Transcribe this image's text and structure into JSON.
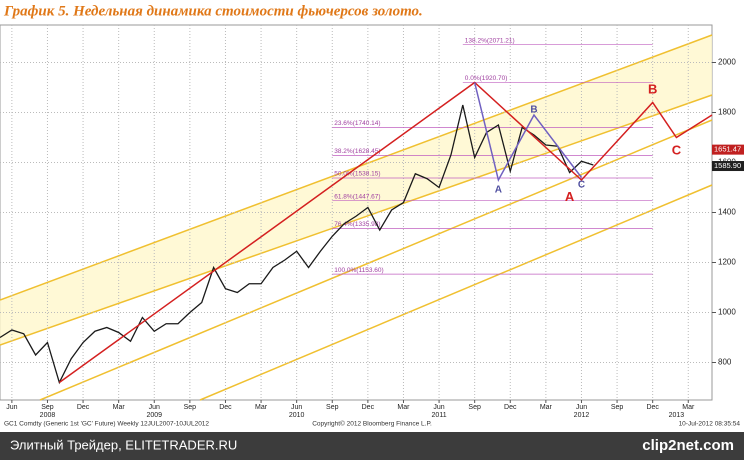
{
  "chart_data": {
    "type": "line",
    "title": "График 5.   Недельная динамика стоимости фьючерсов золото.",
    "xlim": [
      "2008-05",
      "2013-05"
    ],
    "ylim": [
      650,
      2150
    ],
    "yticks": [
      800,
      1000,
      1200,
      1400,
      1600,
      1800,
      2000
    ],
    "grid": true,
    "xticks": [
      {
        "value": "2008-06",
        "label": "Jun"
      },
      {
        "value": "2008-09",
        "label": "Sep"
      },
      {
        "value": "2008-12",
        "label": "Dec"
      },
      {
        "value": "2009-03",
        "label": "Mar"
      },
      {
        "value": "2009-06",
        "label": "Jun"
      },
      {
        "value": "2009-09",
        "label": "Sep"
      },
      {
        "value": "2009-12",
        "label": "Dec"
      },
      {
        "value": "2010-03",
        "label": "Mar"
      },
      {
        "value": "2010-06",
        "label": "Jun"
      },
      {
        "value": "2010-09",
        "label": "Sep"
      },
      {
        "value": "2010-12",
        "label": "Dec"
      },
      {
        "value": "2011-03",
        "label": "Mar"
      },
      {
        "value": "2011-06",
        "label": "Jun"
      },
      {
        "value": "2011-09",
        "label": "Sep"
      },
      {
        "value": "2011-12",
        "label": "Dec"
      },
      {
        "value": "2012-03",
        "label": "Mar"
      },
      {
        "value": "2012-06",
        "label": "Jun"
      },
      {
        "value": "2012-09",
        "label": "Sep"
      },
      {
        "value": "2012-12",
        "label": "Dec"
      },
      {
        "value": "2013-03",
        "label": "Mar"
      }
    ],
    "year_ticks": [
      {
        "value": "2008-09",
        "label": "2008"
      },
      {
        "value": "2009-06",
        "label": "2009"
      },
      {
        "value": "2010-06",
        "label": "2010"
      },
      {
        "value": "2011-06",
        "label": "2011"
      },
      {
        "value": "2012-06",
        "label": "2012"
      },
      {
        "value": "2013-02",
        "label": "2013"
      }
    ],
    "x": [
      "2008-05",
      "2008-06",
      "2008-07",
      "2008-08",
      "2008-09",
      "2008-10",
      "2008-11",
      "2008-12",
      "2009-01",
      "2009-02",
      "2009-03",
      "2009-04",
      "2009-05",
      "2009-06",
      "2009-07",
      "2009-08",
      "2009-09",
      "2009-10",
      "2009-11",
      "2009-12",
      "2010-01",
      "2010-02",
      "2010-03",
      "2010-04",
      "2010-05",
      "2010-06",
      "2010-07",
      "2010-08",
      "2010-09",
      "2010-10",
      "2010-11",
      "2010-12",
      "2011-01",
      "2011-02",
      "2011-03",
      "2011-04",
      "2011-05",
      "2011-06",
      "2011-07",
      "2011-08",
      "2011-09",
      "2011-10",
      "2011-11",
      "2011-12",
      "2012-01",
      "2012-02",
      "2012-03",
      "2012-04",
      "2012-05",
      "2012-06",
      "2012-07"
    ],
    "series": [
      {
        "color": "#1a1a1a",
        "values": [
          900,
          930,
          915,
          830,
          880,
          720,
          815,
          880,
          925,
          940,
          920,
          885,
          980,
          925,
          955,
          955,
          1000,
          1040,
          1180,
          1095,
          1080,
          1115,
          1115,
          1180,
          1210,
          1245,
          1180,
          1245,
          1305,
          1355,
          1385,
          1420,
          1330,
          1410,
          1440,
          1555,
          1535,
          1500,
          1630,
          1830,
          1620,
          1720,
          1750,
          1565,
          1740,
          1710,
          1670,
          1665,
          1560,
          1605,
          1590
        ]
      }
    ],
    "waves": [
      {
        "color": "#d42020",
        "x": [
          "2008-10",
          "2011-09",
          "2012-06",
          "2012-12",
          "2013-02",
          "2013-05"
        ],
        "values": [
          720,
          1920,
          1530,
          1840,
          1700,
          1790
        ]
      },
      {
        "color": "#7060c0",
        "x": [
          "2011-09",
          "2011-11",
          "2012-02",
          "2012-06"
        ],
        "values": [
          1920,
          1530,
          1790,
          1540
        ]
      }
    ],
    "fib_levels": [
      {
        "value": 2071.21,
        "label": "138.2%(2071.21)"
      },
      {
        "value": 1920.7,
        "label": "0.0%(1920.70)"
      },
      {
        "value": 1740.14,
        "label": "23.6%(1740.14)"
      },
      {
        "value": 1628.45,
        "label": "38.2%(1628.45)"
      },
      {
        "value": 1538.15,
        "label": "50.0%(1538.15)"
      },
      {
        "value": 1447.67,
        "label": "61.8%(1447.67)"
      },
      {
        "value": 1335.98,
        "label": "76.4%(1335.98)"
      },
      {
        "value": 1153.6,
        "label": "100.0%(1153.60)"
      }
    ],
    "letters": [
      {
        "x": "2011-11",
        "value": 1490,
        "label": "A",
        "color": "#5050a0"
      },
      {
        "x": "2012-02",
        "value": 1810,
        "label": "B",
        "color": "#5050a0"
      },
      {
        "x": "2012-06",
        "value": 1510,
        "label": "C",
        "color": "#5050a0"
      },
      {
        "x": "2012-05",
        "value": 1460,
        "label": "A",
        "color": "#d42020"
      },
      {
        "x": "2012-12",
        "value": 1890,
        "label": "B",
        "color": "#d42020"
      },
      {
        "x": "2013-02",
        "value": 1645,
        "label": "C",
        "color": "#d42020"
      }
    ],
    "price_tags": [
      {
        "value": 1651.47,
        "label": "1651.47",
        "color": "#c02020"
      },
      {
        "value": 1585.9,
        "label": "1585.90",
        "color": "#202020"
      }
    ],
    "footer": [
      "GC1 Comdty (Generic 1st 'GC' Future) Weekly 12JUL2007-10JUL2012",
      "Copyright© 2012 Bloomberg Finance L.P.",
      "10-Jul-2012 08:35:54"
    ]
  },
  "watermark": {
    "left": "Элитный Трейдер, ELITETRADER.RU",
    "right": "clip2net.com"
  }
}
